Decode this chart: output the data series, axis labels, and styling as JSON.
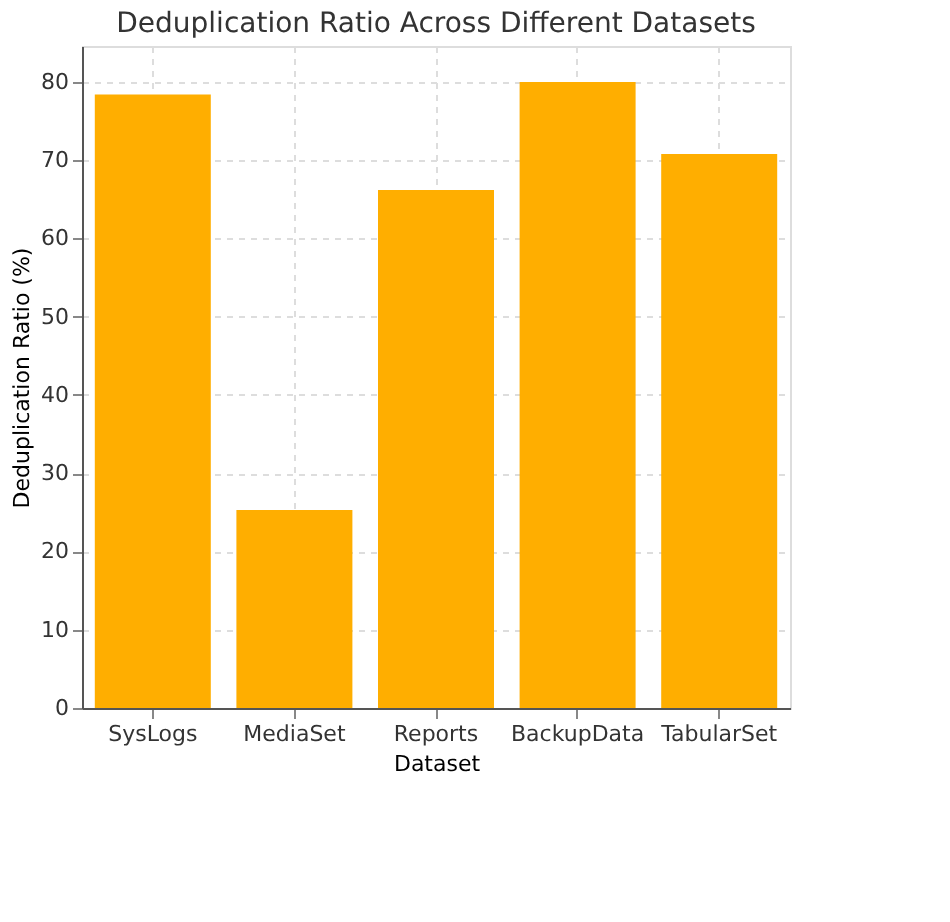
{
  "chart_data": {
    "type": "bar",
    "title": "Deduplication Ratio Across Different Datasets",
    "xlabel": "Dataset",
    "ylabel": "Deduplication Ratio (%)",
    "categories": [
      "SysLogs",
      "MediaSet",
      "Reports",
      "BackupData",
      "TabularSet"
    ],
    "values": [
      78.4,
      25.3,
      66.2,
      80.0,
      70.8
    ],
    "color": "#ffae00",
    "ylim": [
      0,
      84.6
    ],
    "yticks": [
      0,
      10,
      20,
      30,
      40,
      50,
      60,
      70,
      80
    ],
    "grid": true
  }
}
